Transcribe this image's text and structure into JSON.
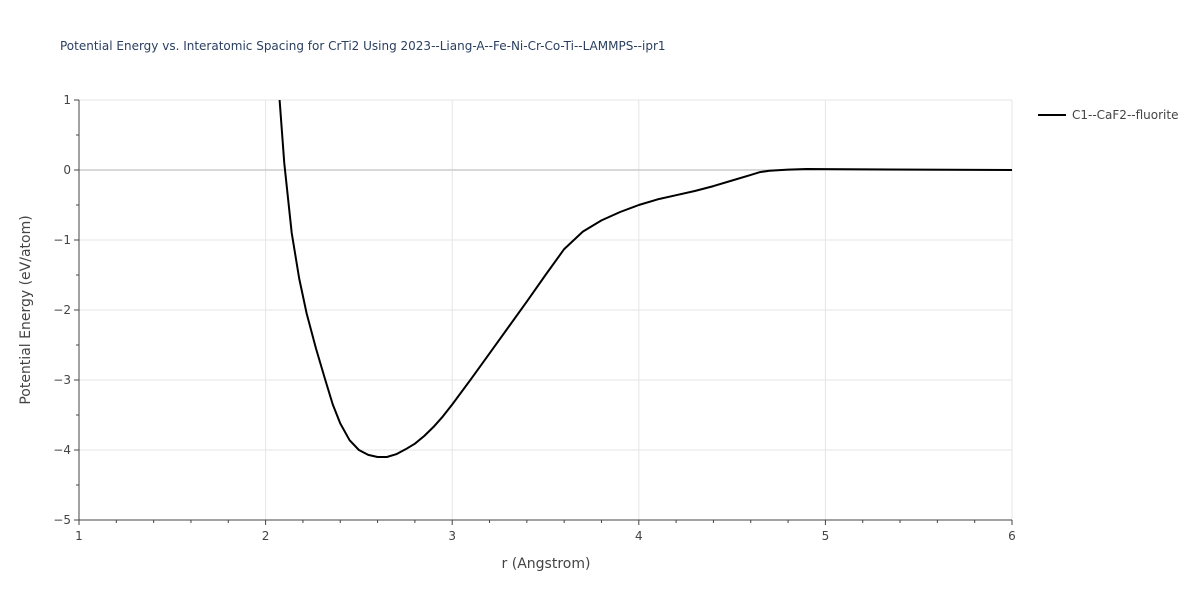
{
  "chart_data": {
    "type": "line",
    "title": "Potential Energy vs. Interatomic Spacing for CrTi2 Using 2023--Liang-A--Fe-Ni-Cr-Co-Ti--LAMMPS--ipr1",
    "xlabel": "r (Angstrom)",
    "ylabel": "Potential Energy (eV/atom)",
    "xlim": [
      1,
      6
    ],
    "ylim": [
      -5,
      1
    ],
    "x_ticks": [
      1,
      2,
      3,
      4,
      5,
      6
    ],
    "x_tick_labels": [
      "1",
      "2",
      "3",
      "4",
      "5",
      "6"
    ],
    "y_ticks": [
      1,
      0,
      -1,
      -2,
      -3,
      -4,
      -5
    ],
    "y_tick_labels": [
      "1",
      "0",
      "−1",
      "−2",
      "−3",
      "−4",
      "−5"
    ],
    "grid": true,
    "legend_position": "top-right",
    "series": [
      {
        "name": "C1--CaF2--fluorite",
        "color": "#000000",
        "points": [
          [
            2.075,
            1.0
          ],
          [
            2.1,
            0.1
          ],
          [
            2.14,
            -0.9
          ],
          [
            2.18,
            -1.55
          ],
          [
            2.22,
            -2.05
          ],
          [
            2.27,
            -2.55
          ],
          [
            2.32,
            -3.0
          ],
          [
            2.36,
            -3.35
          ],
          [
            2.4,
            -3.62
          ],
          [
            2.45,
            -3.86
          ],
          [
            2.5,
            -4.0
          ],
          [
            2.55,
            -4.07
          ],
          [
            2.6,
            -4.1
          ],
          [
            2.65,
            -4.1
          ],
          [
            2.7,
            -4.06
          ],
          [
            2.75,
            -3.99
          ],
          [
            2.8,
            -3.91
          ],
          [
            2.85,
            -3.8
          ],
          [
            2.9,
            -3.67
          ],
          [
            2.95,
            -3.52
          ],
          [
            3.0,
            -3.35
          ],
          [
            3.1,
            -2.99
          ],
          [
            3.2,
            -2.62
          ],
          [
            3.3,
            -2.25
          ],
          [
            3.4,
            -1.88
          ],
          [
            3.5,
            -1.5
          ],
          [
            3.6,
            -1.13
          ],
          [
            3.7,
            -0.88
          ],
          [
            3.8,
            -0.72
          ],
          [
            3.9,
            -0.6
          ],
          [
            4.0,
            -0.5
          ],
          [
            4.1,
            -0.42
          ],
          [
            4.2,
            -0.36
          ],
          [
            4.3,
            -0.3
          ],
          [
            4.4,
            -0.23
          ],
          [
            4.5,
            -0.15
          ],
          [
            4.6,
            -0.07
          ],
          [
            4.65,
            -0.03
          ],
          [
            4.7,
            -0.01
          ],
          [
            4.8,
            0.005
          ],
          [
            4.9,
            0.015
          ],
          [
            5.0,
            0.012
          ],
          [
            5.5,
            0.005
          ],
          [
            6.0,
            0.0
          ]
        ]
      }
    ]
  }
}
